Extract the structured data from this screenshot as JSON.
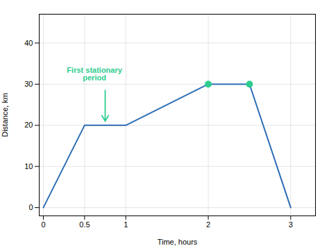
{
  "chart_data": {
    "type": "line",
    "x_label": "Time, hours",
    "y_label": "Distance, km",
    "x": [
      0,
      0.5,
      1,
      2,
      2.5,
      3
    ],
    "series": [
      {
        "type": "line",
        "color": "#2d6db5",
        "values": [
          0,
          20,
          20,
          30,
          30,
          0
        ]
      },
      {
        "type": "scatter",
        "marker": "circle",
        "color": "#2ecc8e",
        "values": [
          null,
          null,
          null,
          30,
          30,
          null
        ]
      }
    ],
    "xlim": [
      -0.05,
      3.3
    ],
    "ylim": [
      -2,
      47
    ],
    "xticks": [
      0,
      0.5,
      1,
      2,
      3
    ],
    "yticks": [
      0,
      10,
      20,
      30,
      40
    ],
    "grid": true,
    "annotations": [
      {
        "text": "First stationary\nperiod",
        "x": 0.62,
        "y": 31,
        "arrow_from": [
          0.75,
          28.5
        ],
        "arrow_to": [
          0.75,
          21
        ],
        "color": "#2ecc8e"
      }
    ]
  }
}
